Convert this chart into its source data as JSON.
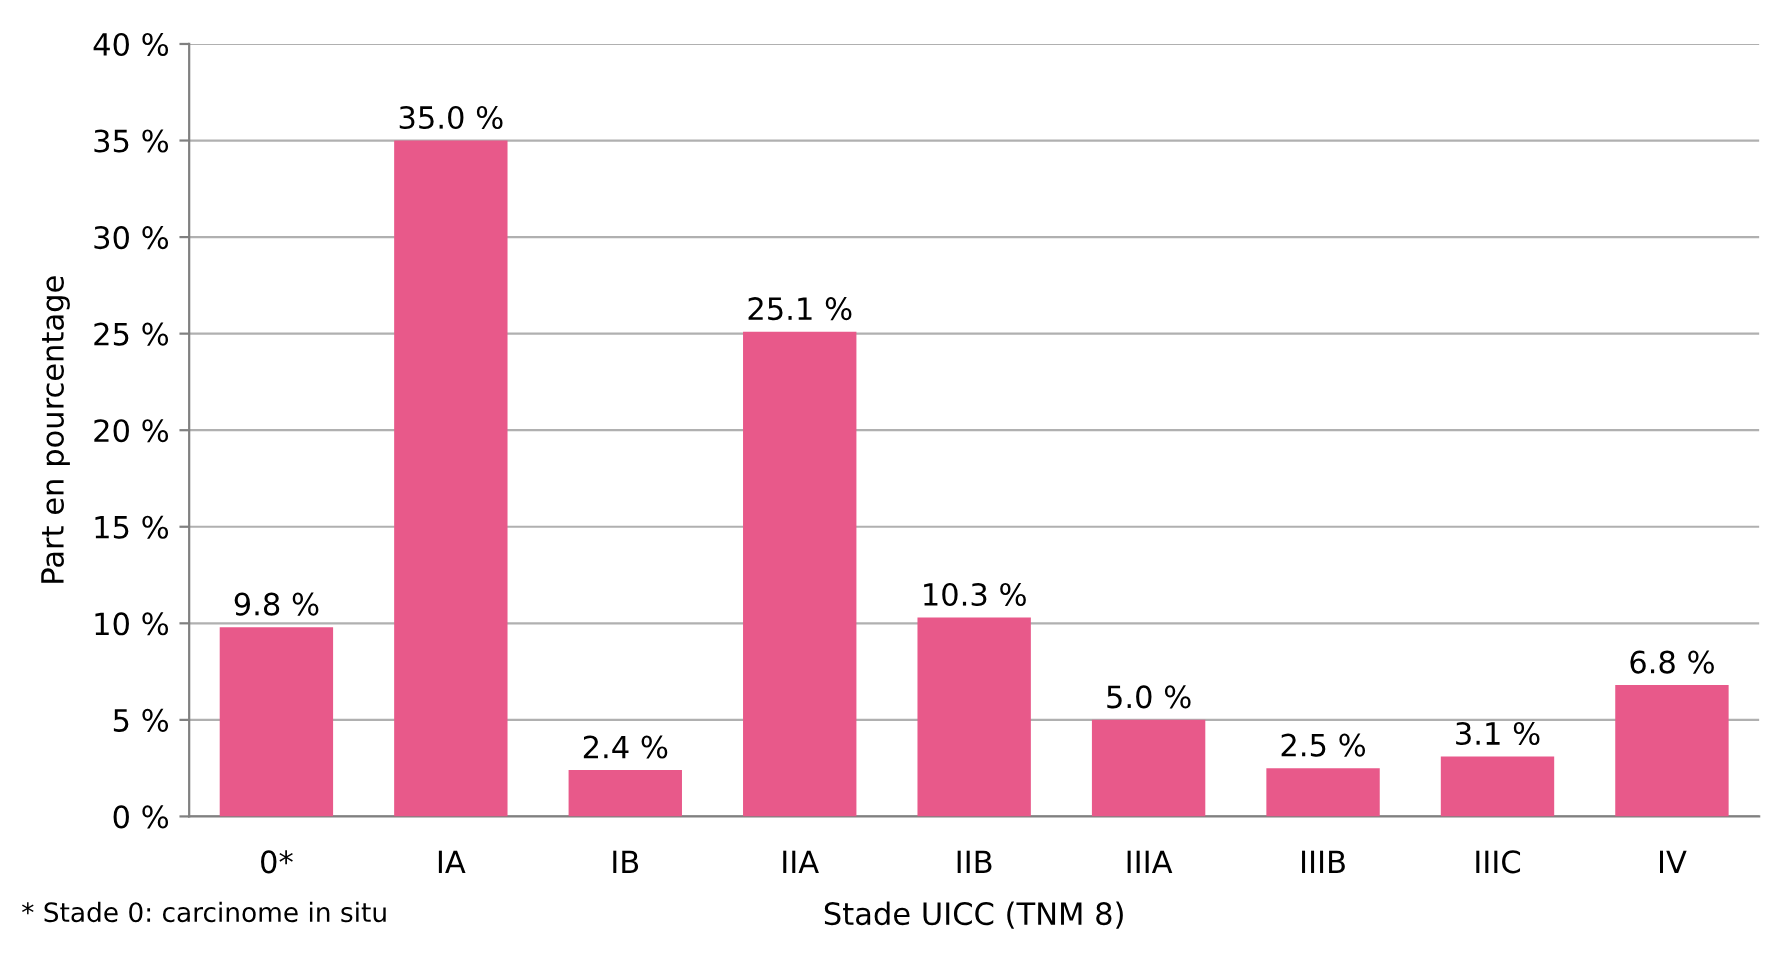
{
  "chart_data": {
    "type": "bar",
    "xlabel": "Stade UICC (TNM 8)",
    "ylabel": "Part en pourcentage",
    "categories": [
      "0*",
      "IA",
      "IB",
      "IIA",
      "IIB",
      "IIIA",
      "IIIB",
      "IIIC",
      "IV"
    ],
    "values": [
      9.8,
      35.0,
      2.4,
      25.1,
      10.3,
      5.0,
      2.5,
      3.1,
      6.8
    ],
    "value_labels": [
      "9.8 %",
      "35.0 %",
      "2.4 %",
      "25.1 %",
      "10.3 %",
      "5.0 %",
      "2.5 %",
      "3.1 %",
      "6.8 %"
    ],
    "color": "#e8598a",
    "ylim": [
      0,
      40
    ],
    "yticks": [
      {
        "value": 0,
        "label": "0 %"
      },
      {
        "value": 5,
        "label": "5 %"
      },
      {
        "value": 10,
        "label": "10 %"
      },
      {
        "value": 15,
        "label": "15 %"
      },
      {
        "value": 20,
        "label": "20 %"
      },
      {
        "value": 25,
        "label": "25 %"
      },
      {
        "value": 30,
        "label": "30 %"
      },
      {
        "value": 35,
        "label": "35 %"
      },
      {
        "value": 40,
        "label": "40 %"
      }
    ],
    "grid": "y",
    "legend": false,
    "annotations": [
      "* Stade 0: carcinome in situ"
    ]
  }
}
